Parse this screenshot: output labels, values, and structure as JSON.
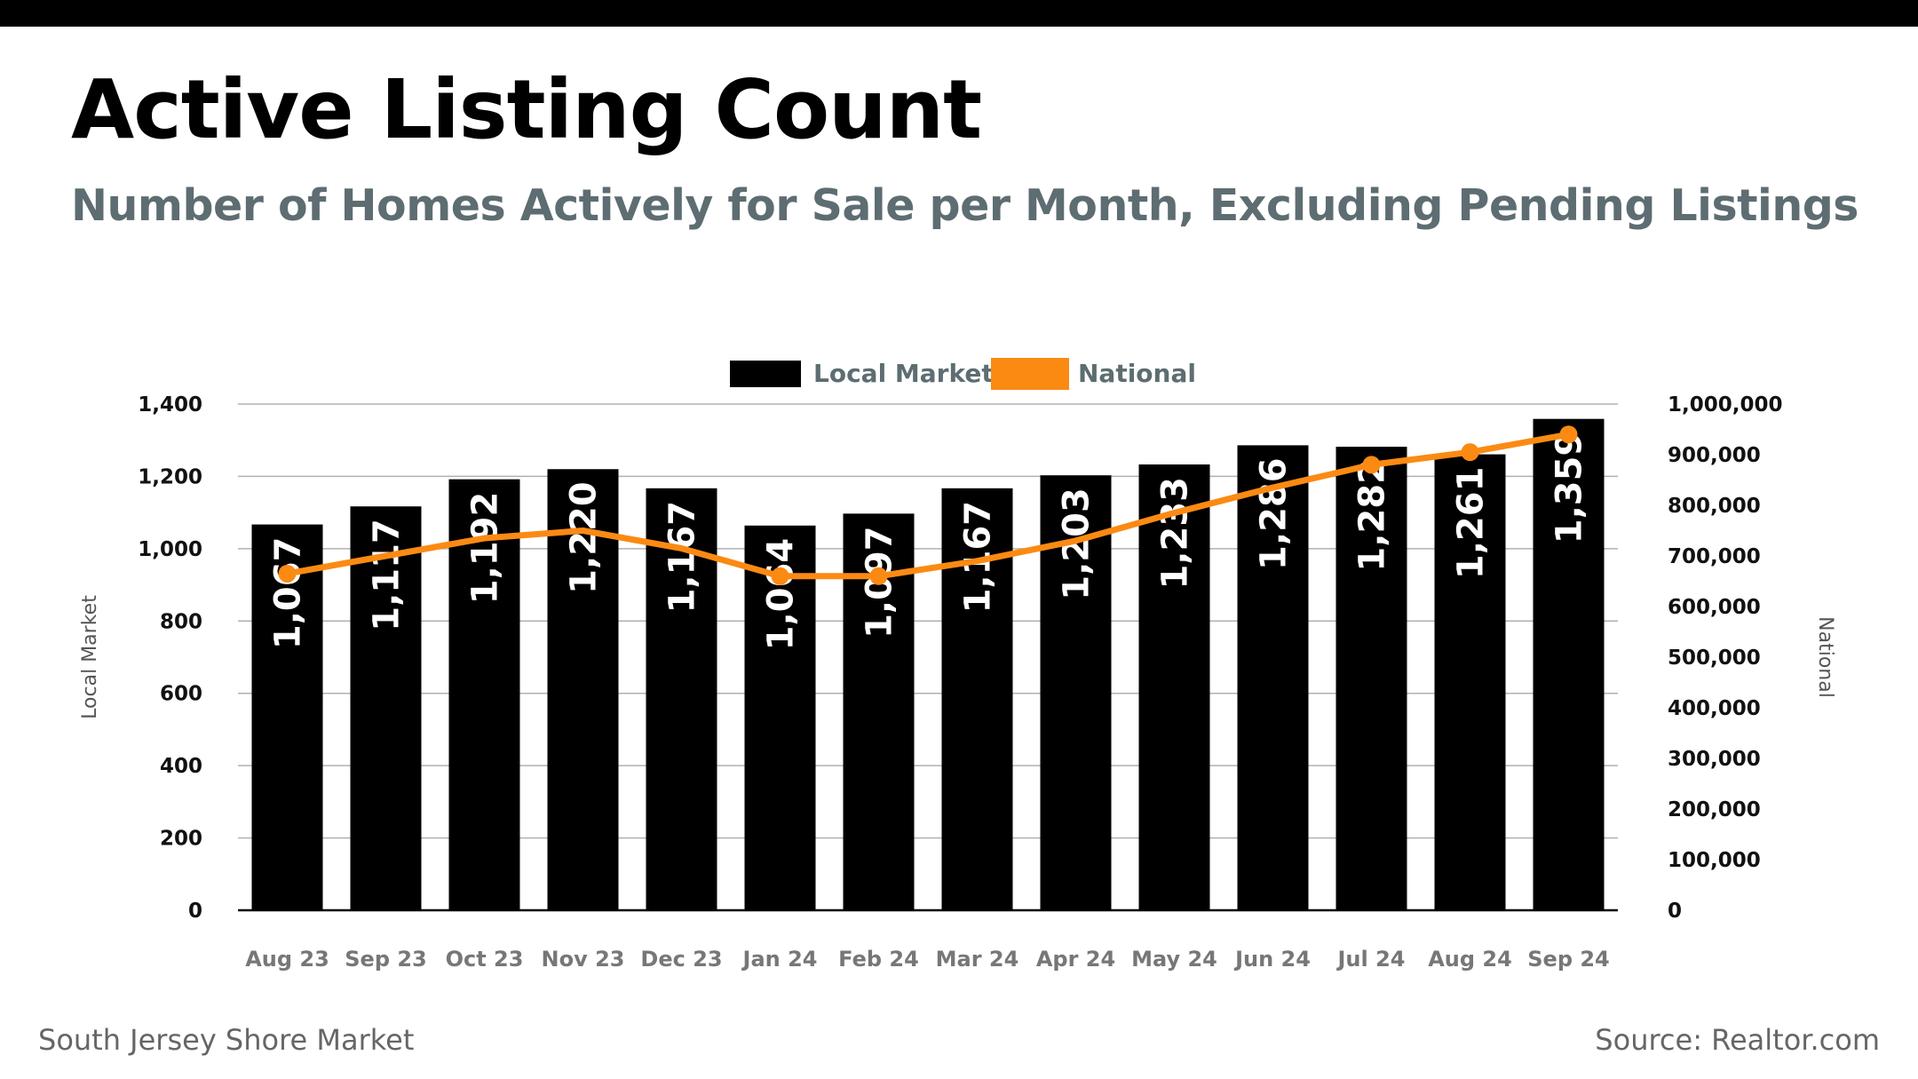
{
  "title": "Active Listing Count",
  "subtitle": "Number of Homes Actively for Sale per Month, Excluding Pending Listings",
  "footer": {
    "market": "South Jersey Shore Market",
    "source": "Source: Realtor.com"
  },
  "colors": {
    "local": "#000000",
    "national": "#fb8a13",
    "grid": "#b0b0b0",
    "subtitle": "#5d6d72"
  },
  "chart_data": {
    "type": "bar",
    "title": "",
    "categories": [
      "Aug 23",
      "Sep 23",
      "Oct 23",
      "Nov 23",
      "Dec 23",
      "Jan 24",
      "Feb 24",
      "Mar 24",
      "Apr 24",
      "May 24",
      "Jun 24",
      "Jul 24",
      "Aug 24",
      "Sep 24"
    ],
    "series": [
      {
        "name": "Local Market",
        "type": "bar",
        "axis": "left",
        "values": [
          1067,
          1117,
          1192,
          1220,
          1167,
          1064,
          1097,
          1167,
          1203,
          1233,
          1286,
          1282,
          1261,
          1359
        ],
        "labels": [
          "1,067",
          "1,117",
          "1,192",
          "1,220",
          "1,167",
          "1,064",
          "1,097",
          "1,167",
          "1,203",
          "1,233",
          "1,286",
          "1,282",
          "1,261",
          "1,359"
        ]
      },
      {
        "name": "National",
        "type": "line",
        "axis": "right",
        "values": [
          665000,
          700000,
          735000,
          750000,
          715000,
          660000,
          660000,
          690000,
          730000,
          785000,
          835000,
          880000,
          905000,
          940000
        ]
      }
    ],
    "ylabel": "Local Market",
    "y2label": "National",
    "ylim": [
      0,
      1400
    ],
    "y2lim": [
      0,
      1000000
    ],
    "yticks": [
      "0",
      "200",
      "400",
      "600",
      "800",
      "1,000",
      "1,200",
      "1,400"
    ],
    "y2ticks": [
      "0",
      "100,000",
      "200,000",
      "300,000",
      "400,000",
      "500,000",
      "600,000",
      "700,000",
      "800,000",
      "900,000",
      "1,000,000"
    ],
    "grid": true,
    "legend": "top-center"
  }
}
